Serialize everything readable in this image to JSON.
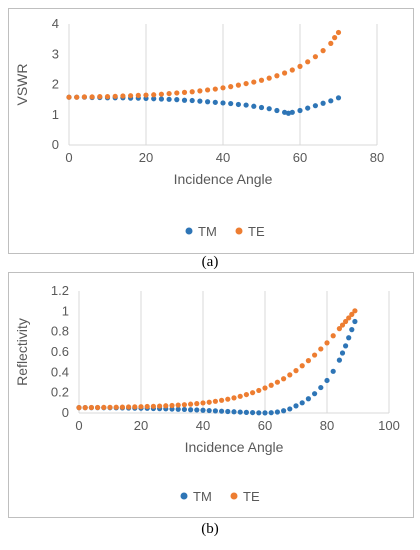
{
  "chart_data": [
    {
      "type": "scatter",
      "title": "",
      "xlabel": "Incidence Angle",
      "ylabel": "VSWR",
      "xlim": [
        0,
        80
      ],
      "ylim": [
        0,
        4
      ],
      "xticks": [
        "0",
        "20",
        "40",
        "60",
        "80"
      ],
      "yticks": [
        "0",
        "1",
        "2",
        "3",
        "4"
      ],
      "grid": "vertical",
      "legend_position": "bottom",
      "series": [
        {
          "name": "TM",
          "color": "#2E75B6",
          "x": [
            0,
            2,
            4,
            6,
            8,
            10,
            12,
            14,
            16,
            18,
            20,
            22,
            24,
            26,
            28,
            30,
            32,
            34,
            36,
            38,
            40,
            42,
            44,
            46,
            48,
            50,
            52,
            54,
            56,
            57,
            58,
            60,
            62,
            64,
            66,
            68,
            70
          ],
          "y": [
            1.58,
            1.58,
            1.58,
            1.57,
            1.57,
            1.56,
            1.56,
            1.56,
            1.55,
            1.55,
            1.54,
            1.53,
            1.52,
            1.51,
            1.5,
            1.48,
            1.47,
            1.45,
            1.43,
            1.41,
            1.39,
            1.37,
            1.34,
            1.32,
            1.28,
            1.24,
            1.2,
            1.14,
            1.08,
            1.05,
            1.08,
            1.14,
            1.22,
            1.3,
            1.38,
            1.46,
            1.56
          ]
        },
        {
          "name": "TE",
          "color": "#ED7D31",
          "x": [
            0,
            2,
            4,
            6,
            8,
            10,
            12,
            14,
            16,
            18,
            20,
            22,
            24,
            26,
            28,
            30,
            32,
            34,
            36,
            38,
            40,
            42,
            44,
            46,
            48,
            50,
            52,
            54,
            56,
            58,
            60,
            62,
            64,
            66,
            68,
            69,
            70
          ],
          "y": [
            1.58,
            1.58,
            1.59,
            1.59,
            1.6,
            1.6,
            1.61,
            1.62,
            1.63,
            1.64,
            1.65,
            1.66,
            1.68,
            1.7,
            1.72,
            1.74,
            1.76,
            1.79,
            1.82,
            1.85,
            1.89,
            1.93,
            1.98,
            2.03,
            2.08,
            2.14,
            2.21,
            2.29,
            2.38,
            2.48,
            2.6,
            2.75,
            2.92,
            3.12,
            3.36,
            3.55,
            3.72
          ]
        }
      ]
    },
    {
      "type": "scatter",
      "title": "",
      "xlabel": "Incidence Angle",
      "ylabel": "Reflectivity",
      "xlim": [
        0,
        100
      ],
      "ylim": [
        0,
        1.2
      ],
      "xticks": [
        "0",
        "20",
        "40",
        "60",
        "80",
        "100"
      ],
      "yticks": [
        "0",
        "0.2",
        "0.4",
        "0.6",
        "0.8",
        "1",
        "1.2"
      ],
      "grid": "vertical",
      "legend_position": "bottom",
      "series": [
        {
          "name": "TM",
          "color": "#2E75B6",
          "x": [
            0,
            2,
            4,
            6,
            8,
            10,
            12,
            14,
            16,
            18,
            20,
            22,
            24,
            26,
            28,
            30,
            32,
            34,
            36,
            38,
            40,
            42,
            44,
            46,
            48,
            50,
            52,
            54,
            56,
            58,
            60,
            62,
            64,
            66,
            68,
            70,
            72,
            74,
            76,
            78,
            80,
            82,
            84,
            85,
            86,
            87,
            88,
            89
          ],
          "y": [
            0.053,
            0.053,
            0.053,
            0.053,
            0.052,
            0.052,
            0.051,
            0.05,
            0.049,
            0.048,
            0.047,
            0.046,
            0.044,
            0.043,
            0.041,
            0.039,
            0.037,
            0.035,
            0.032,
            0.03,
            0.027,
            0.024,
            0.021,
            0.018,
            0.015,
            0.012,
            0.009,
            0.006,
            0.004,
            0.002,
            0.001,
            0.003,
            0.01,
            0.022,
            0.04,
            0.07,
            0.1,
            0.14,
            0.19,
            0.25,
            0.32,
            0.41,
            0.52,
            0.59,
            0.66,
            0.74,
            0.82,
            0.9
          ]
        },
        {
          "name": "TE",
          "color": "#ED7D31",
          "x": [
            0,
            2,
            4,
            6,
            8,
            10,
            12,
            14,
            16,
            18,
            20,
            22,
            24,
            26,
            28,
            30,
            32,
            34,
            36,
            38,
            40,
            42,
            44,
            46,
            48,
            50,
            52,
            54,
            56,
            58,
            60,
            62,
            64,
            66,
            68,
            70,
            72,
            74,
            76,
            78,
            80,
            82,
            84,
            85,
            86,
            87,
            88,
            89
          ],
          "y": [
            0.053,
            0.053,
            0.054,
            0.054,
            0.055,
            0.056,
            0.057,
            0.058,
            0.059,
            0.06,
            0.062,
            0.064,
            0.066,
            0.068,
            0.071,
            0.074,
            0.078,
            0.082,
            0.087,
            0.092,
            0.099,
            0.106,
            0.115,
            0.125,
            0.136,
            0.149,
            0.164,
            0.181,
            0.2,
            0.222,
            0.246,
            0.273,
            0.303,
            0.337,
            0.375,
            0.417,
            0.465,
            0.515,
            0.57,
            0.63,
            0.69,
            0.76,
            0.83,
            0.865,
            0.9,
            0.935,
            0.97,
            1.005
          ]
        }
      ]
    }
  ],
  "captions": {
    "a": "(a)",
    "b": "(b)"
  }
}
